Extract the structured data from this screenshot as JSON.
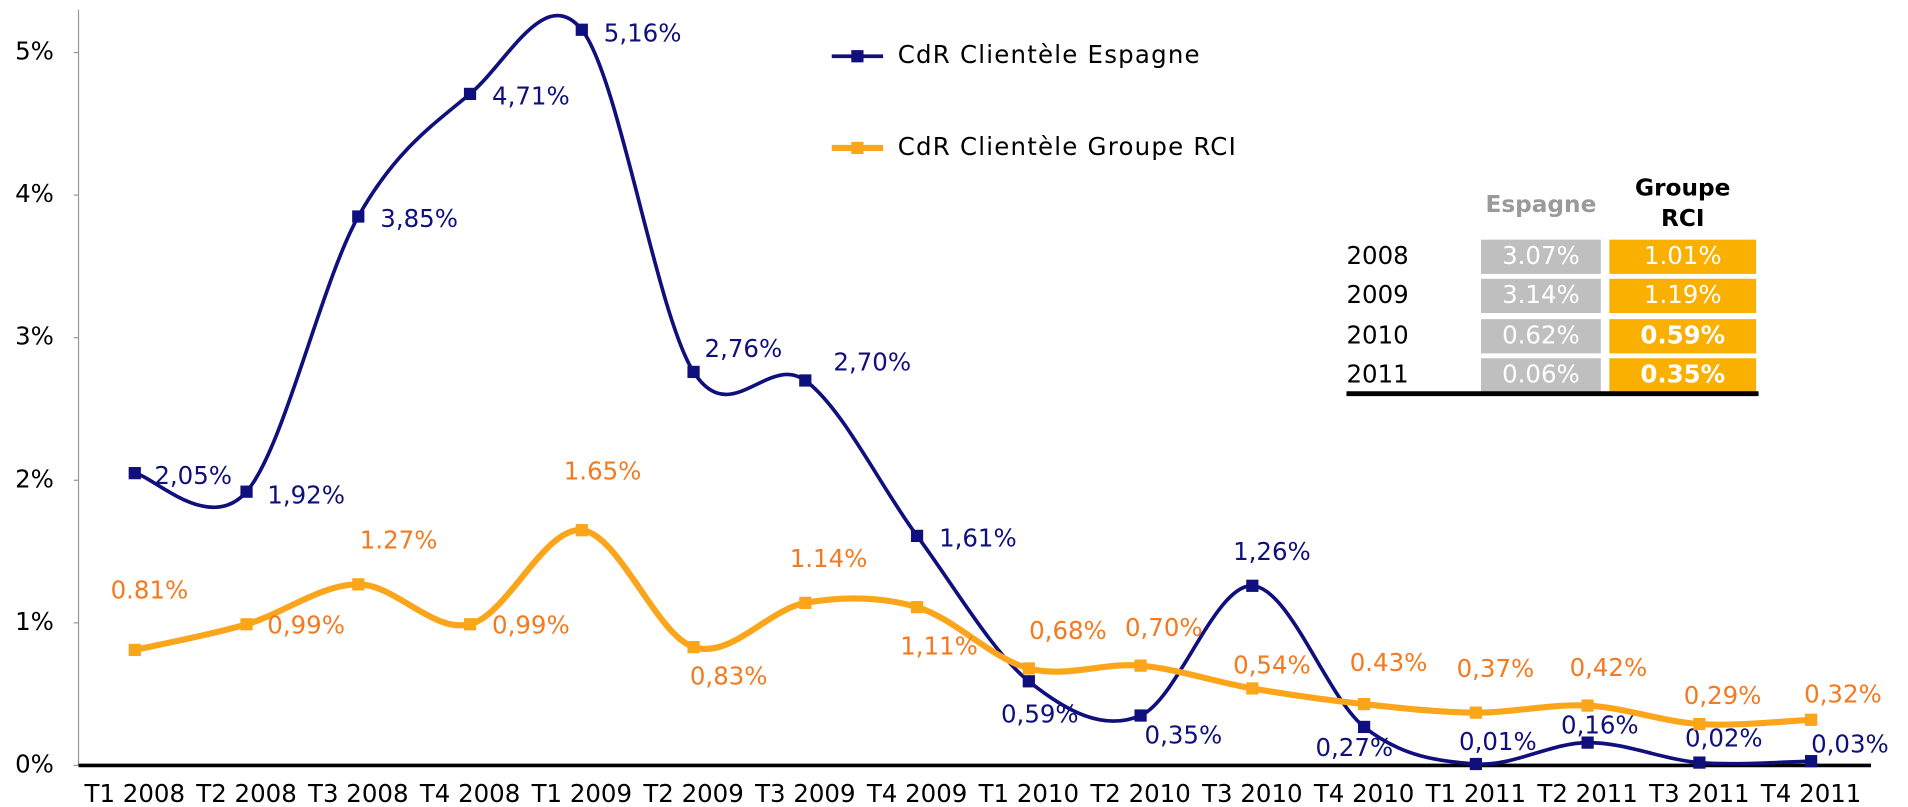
{
  "chart_data": {
    "type": "line",
    "categories": [
      "T1 2008",
      "T2 2008",
      "T3 2008",
      "T4 2008",
      "T1 2009",
      "T2 2009",
      "T3 2009",
      "T4 2009",
      "T1 2010",
      "T2 2010",
      "T3 2010",
      "T4 2010",
      "T1 2011",
      "T2 2011",
      "T3 2011",
      "T4 2011"
    ],
    "series": [
      {
        "name": "CdR Clientèle Espagne",
        "color": "#0f0f7d",
        "values": [
          2.05,
          1.92,
          3.85,
          4.71,
          5.16,
          2.76,
          2.7,
          1.61,
          0.59,
          0.35,
          1.26,
          0.27,
          0.01,
          0.16,
          0.02,
          0.03
        ],
        "value_labels": [
          "2,05%",
          "1,92%",
          "3,85%",
          "4,71%",
          "5,16%",
          "2,76%",
          "2,70%",
          "1,61%",
          "0,59%",
          "0,35%",
          "1,26%",
          "0,27%",
          "0,01%",
          "0,16%",
          "0,02%",
          "0,03%"
        ]
      },
      {
        "name": "CdR Clientèle Groupe RCI",
        "color": "#fba51a",
        "values": [
          0.81,
          0.99,
          1.27,
          0.99,
          1.65,
          0.83,
          1.14,
          1.11,
          0.68,
          0.7,
          0.54,
          0.43,
          0.37,
          0.42,
          0.29,
          0.32
        ],
        "value_labels": [
          "0.81%",
          "0,99%",
          "1.27%",
          "0,99%",
          "1.65%",
          "0,83%",
          "1.14%",
          "1,11%",
          "0,68%",
          "0,70%",
          "0,54%",
          "0.43%",
          "0,37%",
          "0,42%",
          "0,29%",
          "0,32%"
        ]
      }
    ],
    "ylim": [
      0,
      5.3
    ],
    "yticks": [
      {
        "value": 0,
        "label": "0%"
      },
      {
        "value": 1,
        "label": "1%"
      },
      {
        "value": 2,
        "label": "2%"
      },
      {
        "value": 3,
        "label": "3%"
      },
      {
        "value": 4,
        "label": "4%"
      },
      {
        "value": 5,
        "label": "5%"
      }
    ],
    "grid": false,
    "table": {
      "columns": [
        "Espagne",
        "Groupe RCI"
      ],
      "rows": [
        [
          "2008",
          "3.07%",
          "1.01%"
        ],
        [
          "2009",
          "3.14%",
          "1.19%"
        ],
        [
          "2010",
          "0.62%",
          "0.59%"
        ],
        [
          "2011",
          "0.06%",
          "0.35%"
        ]
      ]
    }
  }
}
